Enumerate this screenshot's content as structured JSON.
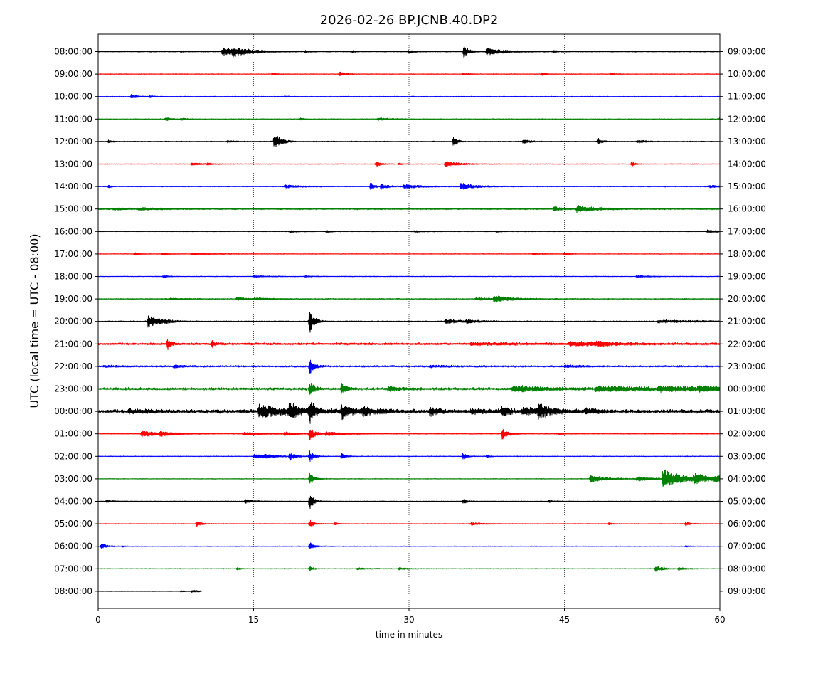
{
  "chart_data": {
    "type": "line",
    "title": "2026-02-26 BP.JCNB.40.DP2",
    "xlabel": "time in minutes",
    "ylabel": "UTC (local time = UTC - 08:00)",
    "xlim": [
      0,
      60
    ],
    "x_ticks": [
      0,
      15,
      30,
      45,
      60
    ],
    "x_tick_labels": [
      "0",
      "15",
      "30",
      "45",
      "60"
    ],
    "grid": "vertical dotted lines at 15, 30, 45",
    "colors": [
      "#000000",
      "#ff0000",
      "#0000ff",
      "#008000"
    ],
    "left_labels": [
      "08:00:00",
      "09:00:00",
      "10:00:00",
      "11:00:00",
      "12:00:00",
      "13:00:00",
      "14:00:00",
      "15:00:00",
      "16:00:00",
      "17:00:00",
      "18:00:00",
      "19:00:00",
      "20:00:00",
      "21:00:00",
      "22:00:00",
      "23:00:00",
      "00:00:00",
      "01:00:00",
      "02:00:00",
      "03:00:00",
      "04:00:00",
      "05:00:00",
      "06:00:00",
      "07:00:00",
      "08:00:00"
    ],
    "right_labels": [
      "09:00:00",
      "10:00:00",
      "11:00:00",
      "12:00:00",
      "13:00:00",
      "14:00:00",
      "15:00:00",
      "16:00:00",
      "17:00:00",
      "18:00:00",
      "19:00:00",
      "20:00:00",
      "21:00:00",
      "22:00:00",
      "23:00:00",
      "00:00:00",
      "01:00:00",
      "02:00:00",
      "03:00:00",
      "04:00:00",
      "05:00:00",
      "06:00:00",
      "07:00:00",
      "08:00:00",
      "09:00:00"
    ],
    "traces": [
      {
        "noise": 0.5,
        "end": 60,
        "events": [
          [
            12,
            6,
            1.5
          ],
          [
            13,
            5,
            1.5
          ],
          [
            35.3,
            9,
            0.4
          ],
          [
            37.5,
            5,
            1.5
          ],
          [
            30,
            2,
            0.6
          ],
          [
            24.5,
            1.5,
            0.3
          ],
          [
            20,
            1.5,
            0.4
          ],
          [
            44,
            1.5,
            0.3
          ],
          [
            8,
            1,
            0.4
          ]
        ]
      },
      {
        "noise": 0.35,
        "end": 60,
        "events": [
          [
            23.3,
            3,
            0.5
          ],
          [
            42.8,
            3,
            0.3
          ],
          [
            16.8,
            1,
            0.4
          ],
          [
            35.2,
            1.5,
            0.4
          ],
          [
            49.5,
            1.3,
            0.3
          ]
        ]
      },
      {
        "noise": 0.35,
        "end": 60,
        "events": [
          [
            3.2,
            3,
            0.6
          ],
          [
            5,
            1.5,
            0.4
          ],
          [
            18,
            1,
            0.4
          ]
        ]
      },
      {
        "noise": 0.35,
        "end": 60,
        "events": [
          [
            6.5,
            3,
            0.4
          ],
          [
            8,
            2,
            0.4
          ],
          [
            27,
            2,
            1
          ],
          [
            19.5,
            1.5,
            0.3
          ],
          [
            60,
            2,
            0.3
          ]
        ]
      },
      {
        "noise": 0.45,
        "end": 60,
        "events": [
          [
            17,
            12,
            0.6
          ],
          [
            34.3,
            9,
            0.3
          ],
          [
            41,
            3,
            0.6
          ],
          [
            48.3,
            5,
            0.3
          ],
          [
            52,
            2.5,
            0.8
          ],
          [
            12.5,
            1.5,
            0.6
          ],
          [
            1,
            2,
            0.4
          ]
        ]
      },
      {
        "noise": 0.35,
        "end": 60,
        "events": [
          [
            33.5,
            4,
            1.2
          ],
          [
            26.8,
            4,
            0.4
          ],
          [
            51.5,
            4,
            0.3
          ],
          [
            29,
            1.5,
            0.3
          ],
          [
            9,
            1.5,
            1.2
          ],
          [
            10.5,
            1,
            0.4
          ]
        ]
      },
      {
        "noise": 0.5,
        "end": 60,
        "events": [
          [
            26.3,
            7,
            0.3
          ],
          [
            27.3,
            4,
            0.6
          ],
          [
            35,
            5,
            1.2
          ],
          [
            29.5,
            3,
            1.5
          ],
          [
            18,
            2,
            1.5
          ],
          [
            1,
            2,
            0.3
          ],
          [
            59,
            1.5,
            1
          ]
        ]
      },
      {
        "noise": 0.8,
        "end": 60,
        "events": [
          [
            46.2,
            5,
            1.5
          ],
          [
            44,
            3,
            0.6
          ],
          [
            1.5,
            1.5,
            1.5
          ],
          [
            4,
            1.5,
            1.5
          ]
        ]
      },
      {
        "noise": 0.35,
        "end": 60,
        "events": [
          [
            58.8,
            2,
            1
          ],
          [
            22,
            1.5,
            0.6
          ],
          [
            18.5,
            1.5,
            0.6
          ],
          [
            30.5,
            1.2,
            0.8
          ],
          [
            38.5,
            1.5,
            0.3
          ]
        ]
      },
      {
        "noise": 0.35,
        "end": 60,
        "events": [
          [
            3.5,
            2,
            0.4
          ],
          [
            6.2,
            1.5,
            0.5
          ],
          [
            45,
            2.5,
            0.4
          ],
          [
            9,
            1,
            2
          ],
          [
            42,
            1,
            0.8
          ]
        ]
      },
      {
        "noise": 0.35,
        "end": 60,
        "events": [
          [
            6.3,
            2,
            0.4
          ],
          [
            52,
            1.5,
            1.2
          ],
          [
            20,
            1,
            0.6
          ],
          [
            15,
            1,
            1.5
          ]
        ]
      },
      {
        "noise": 0.5,
        "end": 60,
        "events": [
          [
            38.2,
            5,
            1.5
          ],
          [
            13.4,
            3,
            0.6
          ],
          [
            15,
            1.5,
            1.5
          ],
          [
            36.5,
            2.5,
            0.8
          ],
          [
            7,
            1,
            1
          ]
        ]
      },
      {
        "noise": 0.6,
        "end": 60,
        "events": [
          [
            4.8,
            8,
            1.2
          ],
          [
            20.4,
            18,
            0.4
          ],
          [
            33.5,
            3,
            1.5
          ],
          [
            35.5,
            2,
            1
          ],
          [
            6.5,
            2,
            0.3
          ],
          [
            54,
            2,
            3
          ]
        ]
      },
      {
        "noise": 1.2,
        "end": 60,
        "events": [
          [
            6.7,
            8,
            0.3
          ],
          [
            11,
            5,
            0.3
          ],
          [
            45.5,
            3,
            3
          ],
          [
            48,
            2,
            2
          ],
          [
            36,
            1.5,
            4
          ]
        ]
      },
      {
        "noise": 0.9,
        "end": 60,
        "events": [
          [
            7.3,
            2,
            0.6
          ],
          [
            0.5,
            1.2,
            1.5
          ],
          [
            20.4,
            12,
            0.4
          ],
          [
            32,
            1.2,
            2
          ],
          [
            45,
            1.2,
            2
          ]
        ]
      },
      {
        "noise": 1.4,
        "end": 60,
        "events": [
          [
            20.4,
            10,
            0.4
          ],
          [
            23.5,
            8,
            0.4
          ],
          [
            28,
            3,
            1
          ],
          [
            40,
            4,
            3
          ],
          [
            48,
            3,
            6
          ],
          [
            54,
            2.5,
            4
          ],
          [
            58,
            2,
            3
          ]
        ]
      },
      {
        "noise": 2.0,
        "end": 60,
        "events": [
          [
            15.5,
            8,
            3
          ],
          [
            18.5,
            12,
            0.6
          ],
          [
            20.4,
            15,
            0.5
          ],
          [
            23.5,
            9,
            0.8
          ],
          [
            25.5,
            5,
            1.5
          ],
          [
            32,
            6,
            0.8
          ],
          [
            36,
            3,
            1.5
          ],
          [
            39,
            7,
            0.6
          ],
          [
            41,
            5,
            2.5
          ],
          [
            42.5,
            7,
            1
          ],
          [
            47,
            2,
            1.5
          ],
          [
            3,
            2.5,
            1.5
          ]
        ]
      },
      {
        "noise": 0.4,
        "end": 60,
        "events": [
          [
            4.2,
            5,
            1.2
          ],
          [
            6,
            3,
            1.2
          ],
          [
            39,
            8,
            0.5
          ],
          [
            20.4,
            10,
            0.5
          ],
          [
            22,
            3,
            1.5
          ],
          [
            14,
            2,
            1.5
          ],
          [
            18,
            3,
            0.8
          ],
          [
            44.5,
            1.5,
            0.3
          ]
        ]
      },
      {
        "noise": 0.35,
        "end": 60,
        "events": [
          [
            15,
            3,
            1.5
          ],
          [
            35.2,
            6,
            0.3
          ],
          [
            37.5,
            2,
            0.3
          ],
          [
            18.5,
            7,
            0.4
          ],
          [
            20.4,
            8,
            0.4
          ],
          [
            23.5,
            4,
            0.4
          ],
          [
            16,
            1.5,
            1
          ]
        ]
      },
      {
        "noise": 0.35,
        "end": 60,
        "events": [
          [
            54.5,
            14,
            1.8
          ],
          [
            47.5,
            5,
            1.5
          ],
          [
            57.5,
            6,
            1.5
          ],
          [
            59.5,
            4,
            1.5
          ],
          [
            52,
            3,
            1.5
          ],
          [
            20.4,
            10,
            0.4
          ]
        ]
      },
      {
        "noise": 0.35,
        "end": 60,
        "events": [
          [
            14.2,
            2.5,
            1
          ],
          [
            35.2,
            5,
            0.3
          ],
          [
            0.8,
            1.5,
            0.8
          ],
          [
            43.5,
            1.5,
            0.6
          ],
          [
            20.4,
            12,
            0.4
          ]
        ]
      },
      {
        "noise": 0.35,
        "end": 60,
        "events": [
          [
            9.5,
            4,
            0.4
          ],
          [
            36,
            2,
            1
          ],
          [
            56.7,
            2.5,
            0.4
          ],
          [
            49.3,
            1.5,
            0.3
          ],
          [
            22.8,
            2,
            0.3
          ],
          [
            20.4,
            6,
            0.4
          ]
        ]
      },
      {
        "noise": 0.35,
        "end": 60,
        "events": [
          [
            0.3,
            4,
            0.5
          ],
          [
            2.3,
            1.2,
            0.3
          ],
          [
            56.7,
            1.2,
            0.3
          ],
          [
            20.4,
            6,
            0.4
          ]
        ]
      },
      {
        "noise": 0.35,
        "end": 60,
        "events": [
          [
            53.8,
            4,
            0.6
          ],
          [
            13.4,
            1.5,
            0.3
          ],
          [
            29,
            1.5,
            0.8
          ],
          [
            25,
            1.2,
            1
          ],
          [
            56,
            2,
            0.6
          ],
          [
            20.4,
            4,
            0.3
          ]
        ]
      },
      {
        "noise": 0.3,
        "end": 10,
        "events": [
          [
            9,
            1.5,
            0.8
          ],
          [
            8,
            1,
            0.4
          ]
        ]
      }
    ]
  }
}
